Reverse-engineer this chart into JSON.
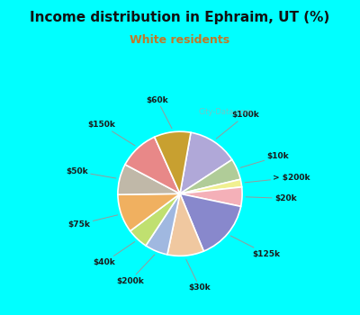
{
  "title": "Income distribution in Ephraim, UT (%)",
  "subtitle": "White residents",
  "bg_outer": "#00ffff",
  "bg_inner_tl": "#e8f8f0",
  "bg_inner_br": "#d0e8e0",
  "labels": [
    "$100k",
    "$10k",
    "> $200k",
    "$20k",
    "$125k",
    "$30k",
    "$200k",
    "$40k",
    "$75k",
    "$50k",
    "$150k",
    "$60k"
  ],
  "sizes": [
    13.0,
    5.5,
    2.0,
    5.0,
    15.5,
    9.5,
    6.0,
    5.5,
    10.0,
    8.0,
    10.5,
    9.5
  ],
  "colors": [
    "#b0a8d8",
    "#b0cc98",
    "#f0f090",
    "#f4b0b8",
    "#8888cc",
    "#f0c8a0",
    "#a0b8e0",
    "#c0e070",
    "#f0b060",
    "#c0b8a8",
    "#e88888",
    "#c8a030"
  ],
  "startangle": 80,
  "title_fontsize": 11,
  "subtitle_fontsize": 9,
  "subtitle_color": "#c07828",
  "label_fontsize": 6.5,
  "watermark_text": "City-Data.com",
  "watermark_color": "#aaaaaa",
  "watermark_alpha": 0.65
}
